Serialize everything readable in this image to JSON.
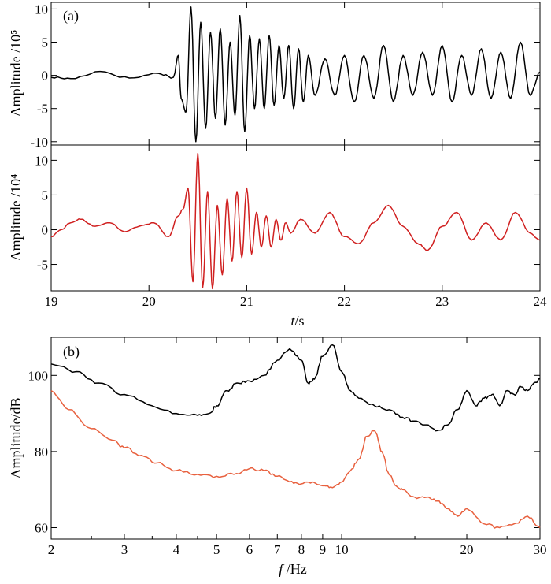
{
  "chart_data": [
    {
      "panel_label": "(a)",
      "type": "line",
      "xlabel": "",
      "ylabel": "Amplitude /10⁵",
      "xlim": [
        19,
        24
      ],
      "ylim": [
        -10.5,
        11
      ],
      "yticks": [
        10,
        5,
        0,
        -5,
        -10
      ],
      "ytick_labels": [
        "10",
        "5",
        "0",
        "-5",
        "-10"
      ],
      "grid": false,
      "series": [
        {
          "color": "#000000",
          "x": [
            19.0,
            19.2,
            19.5,
            19.8,
            20.1,
            20.25,
            20.3,
            20.33,
            20.38,
            20.43,
            20.48,
            20.53,
            20.58,
            20.63,
            20.68,
            20.73,
            20.78,
            20.83,
            20.88,
            20.93,
            20.98,
            21.03,
            21.08,
            21.13,
            21.18,
            21.23,
            21.28,
            21.33,
            21.38,
            21.43,
            21.48,
            21.53,
            21.58,
            21.63,
            21.7,
            21.8,
            21.9,
            22.0,
            22.1,
            22.2,
            22.3,
            22.4,
            22.5,
            22.6,
            22.7,
            22.8,
            22.9,
            23.0,
            23.1,
            23.2,
            23.3,
            23.4,
            23.5,
            23.6,
            23.7,
            23.8,
            23.9,
            24.0
          ],
          "y": [
            -0.3,
            -0.5,
            0.6,
            -0.4,
            0.3,
            -0.3,
            3.0,
            -3.5,
            -5.5,
            10.3,
            -10.0,
            8.0,
            -8.0,
            6.5,
            -6.5,
            7.0,
            -7.5,
            5.0,
            -6.0,
            9.0,
            -8.5,
            6.0,
            -5.0,
            5.5,
            -5.0,
            6.0,
            -4.5,
            4.5,
            -3.5,
            4.5,
            -5.0,
            4.0,
            -4.0,
            3.0,
            -3.0,
            2.5,
            -3.0,
            3.0,
            -4.0,
            3.0,
            -3.5,
            4.5,
            -4.0,
            3.0,
            -3.0,
            3.5,
            -3.0,
            4.5,
            -4.0,
            3.0,
            -3.0,
            4.0,
            -3.5,
            3.5,
            -3.5,
            5.0,
            -3.0,
            0.5
          ]
        }
      ]
    },
    {
      "type": "line",
      "xlabel": "t/s",
      "xlabel_italic": "t",
      "xlabel_rest": "/s",
      "ylabel": "Amplitude /10⁴",
      "xlim": [
        19,
        24
      ],
      "ylim": [
        -8.8,
        12.2
      ],
      "xticks": [
        19,
        20,
        21,
        22,
        23,
        24
      ],
      "xtick_labels": [
        "19",
        "20",
        "21",
        "22",
        "23",
        "24"
      ],
      "yticks": [
        10,
        5,
        0,
        -5
      ],
      "ytick_labels": [
        "10",
        "5",
        "0",
        "-5"
      ],
      "grid": false,
      "series": [
        {
          "color": "#d02020",
          "x": [
            19.0,
            19.1,
            19.2,
            19.3,
            19.45,
            19.6,
            19.75,
            19.9,
            20.05,
            20.2,
            20.3,
            20.35,
            20.4,
            20.45,
            20.5,
            20.55,
            20.6,
            20.65,
            20.7,
            20.75,
            20.8,
            20.85,
            20.9,
            20.95,
            21.0,
            21.05,
            21.1,
            21.15,
            21.2,
            21.25,
            21.3,
            21.35,
            21.4,
            21.45,
            21.55,
            21.7,
            21.85,
            22.0,
            22.15,
            22.3,
            22.45,
            22.6,
            22.75,
            22.85,
            23.0,
            23.15,
            23.3,
            23.45,
            23.6,
            23.75,
            23.9,
            24.0
          ],
          "y": [
            -1.0,
            0.0,
            1.0,
            1.5,
            0.5,
            1.0,
            -0.3,
            0.5,
            1.0,
            -1.0,
            2.0,
            3.0,
            6.0,
            -7.5,
            11.0,
            -8.3,
            5.5,
            -8.5,
            3.5,
            -6.5,
            4.5,
            -4.5,
            5.5,
            -4.0,
            6.0,
            -3.5,
            2.5,
            -2.5,
            2.0,
            -2.5,
            1.5,
            -1.5,
            1.0,
            -0.5,
            1.5,
            -0.5,
            2.5,
            -1.0,
            -2.0,
            1.0,
            3.5,
            0.5,
            -2.0,
            -3.0,
            0.5,
            2.5,
            -1.5,
            1.0,
            -1.5,
            2.5,
            -0.5,
            -1.5
          ]
        }
      ]
    },
    {
      "panel_label": "(b)",
      "type": "line",
      "xscale": "log",
      "xlabel": "f /Hz",
      "xlabel_italic": "f",
      "xlabel_rest": " /Hz",
      "ylabel": "Amplitude/dB",
      "xlim": [
        2,
        30
      ],
      "ylim": [
        57,
        110
      ],
      "xticks": [
        2,
        3,
        4,
        5,
        6,
        7,
        8,
        9,
        10,
        20,
        30
      ],
      "xtick_labels": [
        "2",
        "3",
        "4",
        "5",
        "6",
        "7",
        "8",
        "9",
        "10",
        "20",
        "30"
      ],
      "yticks": [
        100,
        80,
        60
      ],
      "ytick_labels": [
        "100",
        "80",
        "60"
      ],
      "grid": false,
      "series": [
        {
          "color": "#000000",
          "x": [
            2.0,
            2.3,
            2.6,
            3.0,
            3.5,
            4.0,
            4.5,
            4.8,
            5.0,
            5.3,
            5.6,
            6.0,
            6.5,
            7.0,
            7.5,
            8.0,
            8.3,
            8.6,
            9.0,
            9.5,
            10.0,
            10.5,
            11.0,
            12.0,
            13.0,
            14.0,
            15.0,
            16.0,
            17.0,
            18.0,
            19.0,
            20.0,
            21.0,
            22.0,
            23.0,
            24.0,
            25.0,
            26.0,
            27.0,
            28.0,
            29.0,
            30.0
          ],
          "y": [
            103,
            101,
            98,
            95,
            92,
            90,
            89.5,
            90,
            92,
            96,
            98,
            98.5,
            100,
            104,
            107,
            104,
            98,
            99,
            105,
            108,
            101,
            96,
            94,
            92,
            91,
            89,
            88,
            87,
            85.5,
            87,
            91,
            96,
            92,
            94,
            95,
            92,
            96,
            95,
            97,
            96,
            98,
            99
          ]
        },
        {
          "color": "#e8613f",
          "x": [
            2.0,
            2.2,
            2.5,
            2.8,
            3.0,
            3.3,
            3.6,
            4.0,
            4.5,
            5.0,
            5.5,
            6.0,
            6.5,
            7.0,
            7.5,
            8.0,
            8.5,
            9.0,
            9.5,
            10.0,
            10.5,
            11.0,
            11.5,
            12.0,
            12.5,
            13.0,
            13.5,
            14.0,
            15.0,
            16.0,
            17.0,
            18.0,
            19.0,
            20.0,
            22.0,
            24.0,
            26.0,
            28.0,
            30.0
          ],
          "y": [
            96,
            91,
            86,
            83,
            81,
            79,
            77,
            75,
            74,
            73.5,
            74,
            75.5,
            75,
            73.5,
            72,
            71.5,
            72,
            71,
            70.5,
            72,
            75,
            78,
            84,
            85.5,
            80,
            74,
            71,
            70,
            68,
            68,
            67,
            65,
            63,
            65,
            61,
            60,
            61,
            63,
            60
          ]
        }
      ]
    }
  ]
}
